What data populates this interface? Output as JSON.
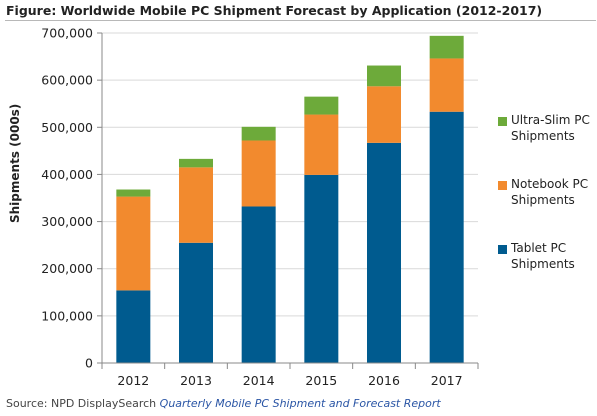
{
  "figure_title": "Figure: Worldwide Mobile PC Shipment Forecast by Application (2012-2017)",
  "source": {
    "prefix": "Source: NPD DisplaySearch",
    "report": "Quarterly Mobile PC Shipment and Forecast Report"
  },
  "colors": {
    "tablet": "#005b8f",
    "notebook": "#f28a2e",
    "ultraslim": "#6daa3a",
    "gridline": "#d9d9d9",
    "axis": "#888888"
  },
  "chart_data": {
    "type": "bar",
    "stacked": true,
    "categories": [
      "2012",
      "2013",
      "2014",
      "2015",
      "2016",
      "2017"
    ],
    "series": [
      {
        "name": "Tablet PC Shipments",
        "color": "#005b8f",
        "values": [
          154000,
          255000,
          332000,
          399000,
          467000,
          533000
        ]
      },
      {
        "name": "Notebook PC Shipments",
        "color": "#f28a2e",
        "values": [
          199000,
          160000,
          140000,
          128000,
          120000,
          113000
        ]
      },
      {
        "name": "Ultra-Slim PC Shipments",
        "color": "#6daa3a",
        "values": [
          15000,
          18000,
          29000,
          38000,
          44000,
          48000
        ]
      }
    ],
    "legend_order": [
      "Ultra-Slim PC Shipments",
      "Notebook PC Shipments",
      "Tablet PC Shipments"
    ],
    "ylabel": "Shipments (000s)",
    "ylim": [
      0,
      700000
    ],
    "yticks": [
      "0",
      "100,000",
      "200,000",
      "300,000",
      "400,000",
      "500,000",
      "600,000",
      "700,000"
    ],
    "grid": true,
    "legend_position": "right"
  },
  "legend": {
    "ultraslim": "Ultra-Slim PC Shipments",
    "notebook": "Notebook PC Shipments",
    "tablet": "Tablet PC Shipments"
  }
}
